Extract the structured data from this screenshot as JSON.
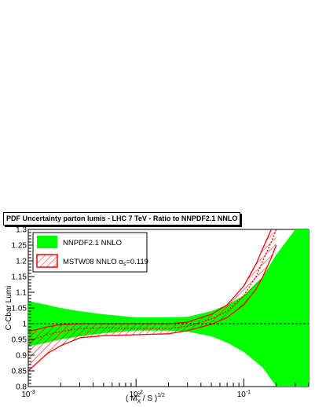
{
  "chart_data": {
    "type": "area",
    "title": "PDF Uncertainty parton lumis - LHC 7 TeV - Ratio to NNPDF2.1 NNLO",
    "ylabel": "C-Cbar Lumi",
    "xlabel_parts": {
      "main": "( M",
      "sub": "X",
      "sup": "2",
      "rest": " / S )",
      "power": "1/2"
    },
    "x_scale": "log",
    "xlim": [
      0.001,
      0.4
    ],
    "ylim": [
      0.8,
      1.3
    ],
    "x_ticks": [
      {
        "value": 0.001,
        "base": "10",
        "exp": "-3"
      },
      {
        "value": 0.01,
        "base": "10",
        "exp": "-2"
      },
      {
        "value": 0.1,
        "base": "10",
        "exp": "-1"
      }
    ],
    "y_ticks": [
      {
        "value": 0.8,
        "label": "0.8"
      },
      {
        "value": 0.85,
        "label": "0.85"
      },
      {
        "value": 0.9,
        "label": "0.9"
      },
      {
        "value": 0.95,
        "label": "0.95"
      },
      {
        "value": 1.0,
        "label": "1"
      },
      {
        "value": 1.05,
        "label": "1.05"
      },
      {
        "value": 1.1,
        "label": "1.1"
      },
      {
        "value": 1.15,
        "label": "1.15"
      },
      {
        "value": 1.2,
        "label": "1.2"
      },
      {
        "value": 1.25,
        "label": "1.25"
      },
      {
        "value": 1.3,
        "label": "1.3"
      }
    ],
    "reference_line": 1.0,
    "legend": {
      "placement": "top-left",
      "entries": [
        {
          "label": "NNPDF2.1 NNLO",
          "style": "solid",
          "color": "#00ff00"
        },
        {
          "label_main": "MSTW08 NNLO α",
          "label_sub": "s",
          "label_rest": "=0.119",
          "style": "hatched",
          "color": "#ff0000"
        }
      ]
    },
    "series": [
      {
        "name": "NNPDF2.1 NNLO",
        "color": "#00ff00",
        "x": [
          0.001,
          0.0015,
          0.002,
          0.003,
          0.005,
          0.01,
          0.02,
          0.03,
          0.05,
          0.07,
          0.1,
          0.15,
          0.2,
          0.3,
          0.4
        ],
        "upper": [
          1.072,
          1.06,
          1.05,
          1.04,
          1.03,
          1.02,
          1.02,
          1.022,
          1.04,
          1.06,
          1.09,
          1.15,
          1.22,
          1.3,
          1.32
        ],
        "lower": [
          0.928,
          0.94,
          0.95,
          0.96,
          0.97,
          0.978,
          0.978,
          0.975,
          0.96,
          0.94,
          0.91,
          0.86,
          0.8,
          0.72,
          0.68
        ]
      },
      {
        "name": "MSTW08 NNLO αs=0.119",
        "color": "#ff0000",
        "x": [
          0.001,
          0.0015,
          0.002,
          0.003,
          0.005,
          0.01,
          0.02,
          0.03,
          0.05,
          0.07,
          0.1,
          0.13,
          0.15,
          0.18,
          0.2
        ],
        "upper": [
          0.975,
          0.99,
          0.997,
          1.0,
          1.0,
          1.0,
          1.0,
          1.005,
          1.03,
          1.06,
          1.12,
          1.19,
          1.24,
          1.3,
          1.34
        ],
        "central": [
          0.945,
          0.965,
          0.975,
          0.985,
          0.987,
          0.985,
          0.985,
          0.992,
          1.015,
          1.04,
          1.09,
          1.15,
          1.2,
          1.26,
          1.3
        ],
        "lower": [
          0.85,
          0.905,
          0.93,
          0.955,
          0.962,
          0.965,
          0.968,
          0.978,
          0.998,
          1.02,
          1.06,
          1.11,
          1.15,
          1.21,
          1.25
        ]
      }
    ]
  }
}
